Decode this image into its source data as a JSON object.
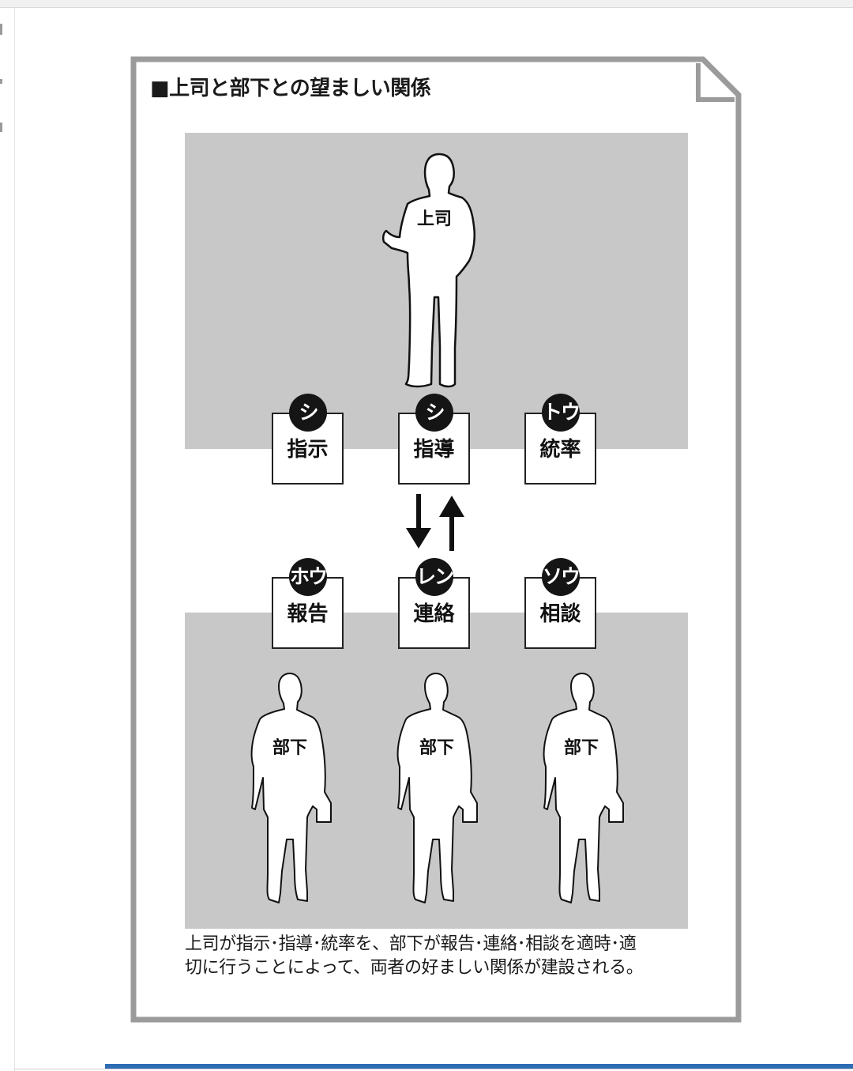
{
  "title": "■上司と部下との望ましい関係",
  "boss": {
    "label": "上司"
  },
  "subordinates": [
    {
      "label": "部下"
    },
    {
      "label": "部下"
    },
    {
      "label": "部下"
    }
  ],
  "boss_actions": [
    {
      "kana": "シ",
      "kanji": "指示"
    },
    {
      "kana": "シ",
      "kanji": "指導"
    },
    {
      "kana": "トウ",
      "kanji": "統率"
    }
  ],
  "subordinate_actions": [
    {
      "kana": "ホウ",
      "kanji": "報告"
    },
    {
      "kana": "レン",
      "kanji": "連絡"
    },
    {
      "kana": "ソウ",
      "kanji": "相談"
    }
  ],
  "caption": {
    "line1": "上司が指示･指導･統率を、部下が報告･連絡･相談を適時･適",
    "line2": "切に行うことによって、両者の好ましい関係が建設される。"
  },
  "colors": {
    "panel_gray": "#c8c8c8",
    "frame_gray": "#9b9b9b",
    "badge": "#151515",
    "accent_bar": "#2e6db4"
  }
}
